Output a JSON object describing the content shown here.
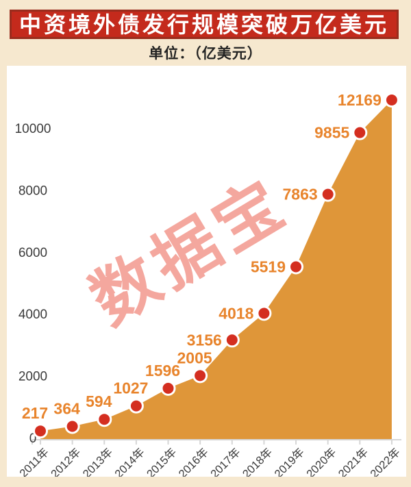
{
  "header": {
    "title": "中资境外债发行规模突破万亿美元",
    "subtitle": "单位：（亿美元）"
  },
  "chart_data": {
    "type": "area",
    "title": "中资境外债发行规模突破万亿美元",
    "unit": "亿美元",
    "categories": [
      "2011年",
      "2012年",
      "2013年",
      "2014年",
      "2015年",
      "2016年",
      "2017年",
      "2018年",
      "2019年",
      "2020年",
      "2021年",
      "2022年"
    ],
    "values": [
      217,
      364,
      594,
      1027,
      1596,
      2005,
      3156,
      4018,
      5519,
      7863,
      9855,
      12169
    ],
    "yticks": [
      0,
      2000,
      4000,
      6000,
      8000,
      10000
    ],
    "ylim": [
      0,
      12000
    ],
    "grid": false,
    "legend": "none",
    "watermark": "数据宝"
  },
  "colors": {
    "background": "#f6e8cf",
    "banner_bg": "#c42a1c",
    "banner_border": "#9a2c1d",
    "banner_text": "#ffffff",
    "subtitle_text": "#222222",
    "panel_bg": "#ffffff",
    "area_fill": "#df9639",
    "dot_fill": "#d42e20",
    "dot_ring": "#ffffff",
    "value_label": "#e8842c",
    "axis_text": "#3b3b3b",
    "axis_line": "#d6d6d6",
    "watermark": "#f4a79e"
  }
}
